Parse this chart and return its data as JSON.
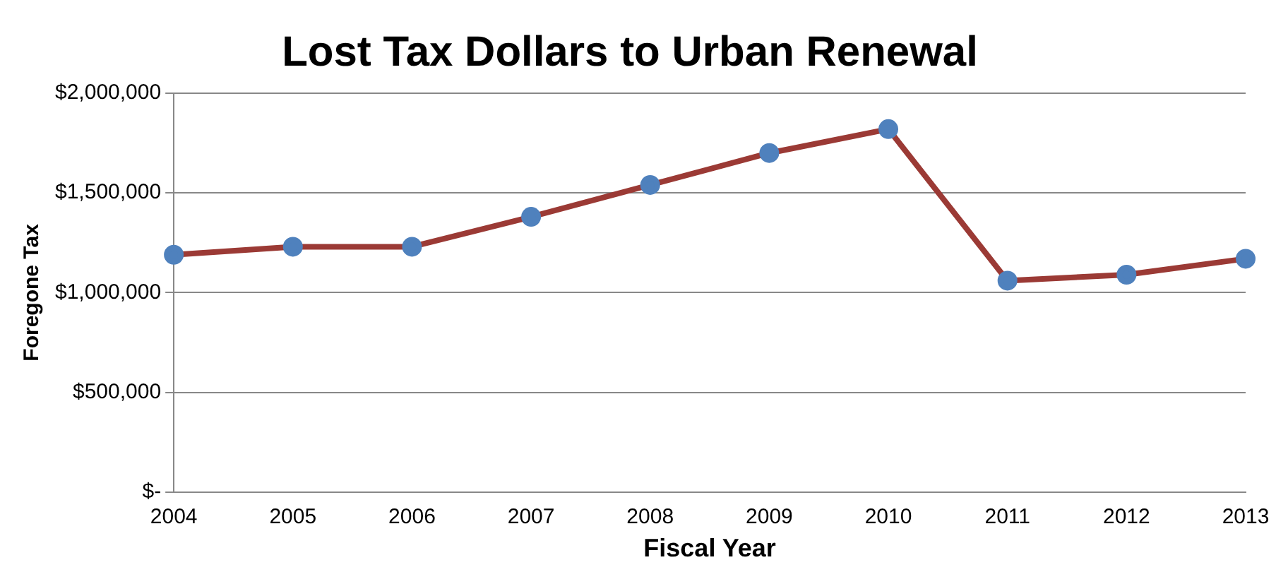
{
  "chart_data": {
    "type": "line",
    "title": "Lost Tax Dollars to Urban Renewal",
    "xlabel": "Fiscal Year",
    "ylabel": "Foregone Tax",
    "categories": [
      "2004",
      "2005",
      "2006",
      "2007",
      "2008",
      "2009",
      "2010",
      "2011",
      "2012",
      "2013"
    ],
    "series": [
      {
        "color": "#9b3a35",
        "colors": [
          "#4f81bd",
          "#4f81bd",
          "#4f81bd",
          "#4f81bd",
          "#4f81bd",
          "#4f81bd",
          "#4f81bd",
          "#4f81bd",
          "#4f81bd",
          "#4f81bd"
        ],
        "values": [
          1190000,
          1230000,
          1230000,
          1380000,
          1540000,
          1700000,
          1820000,
          1060000,
          1090000,
          1170000
        ]
      }
    ],
    "ylim": [
      0,
      2000000
    ],
    "yticks": [
      {
        "value": 0,
        "label": "$-"
      },
      {
        "value": 500000,
        "label": "$500,000"
      },
      {
        "value": 1000000,
        "label": "$1,000,000"
      },
      {
        "value": 1500000,
        "label": "$1,500,000"
      },
      {
        "value": 2000000,
        "label": "$2,000,000"
      }
    ],
    "grid": "y",
    "legend": false,
    "marker": "circle",
    "line_style": "solid"
  }
}
